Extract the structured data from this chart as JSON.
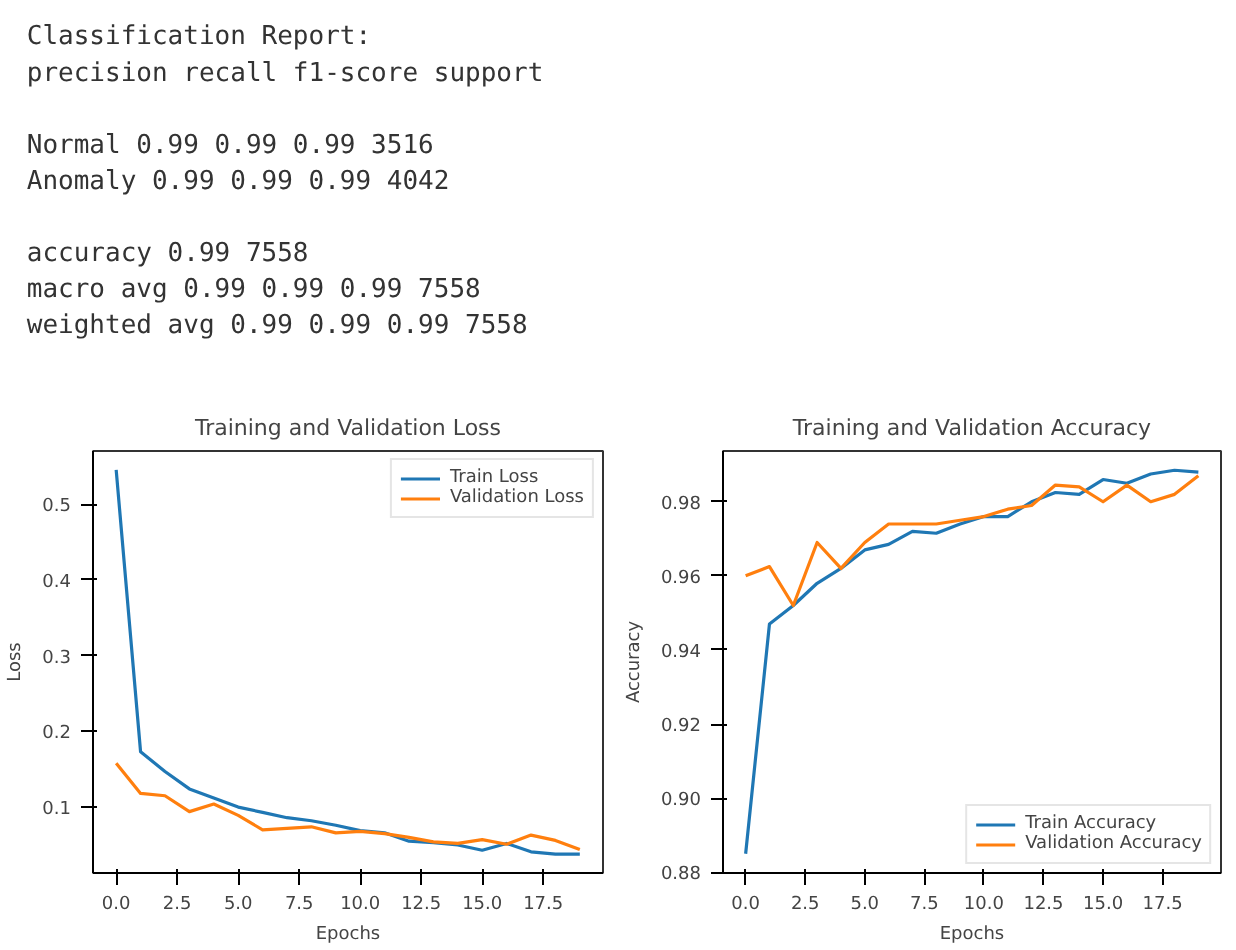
{
  "chart_data": [
    {
      "type": "other",
      "title": "Classification Report:",
      "annotations": [
        "              precision    recall  f1-score   support",
        "      Normal       0.99      0.99      0.99      3516\n     Anomaly       0.99      0.99      0.99      4042",
        "    accuracy                           0.99      7558\n   macro avg       0.99      0.99      0.99      7558\nweighted avg       0.99      0.99      0.99      7558"
      ]
    },
    {
      "type": "line",
      "title": "Training and Validation Loss",
      "xlabel": "Epochs",
      "ylabel": "Loss",
      "x": [
        0,
        1,
        2,
        3,
        4,
        5,
        6,
        7,
        8,
        9,
        10,
        11,
        12,
        13,
        14,
        15,
        16,
        17,
        18,
        19
      ],
      "series": [
        {
          "name": "Train Loss",
          "color": "#1f77b4",
          "values": [
            0.545,
            0.173,
            0.147,
            0.124,
            0.112,
            0.1,
            0.093,
            0.086,
            0.082,
            0.076,
            0.069,
            0.066,
            0.055,
            0.053,
            0.05,
            0.043,
            0.052,
            0.041,
            0.038,
            0.038
          ]
        },
        {
          "name": "Validation Loss",
          "color": "#ff7f0e",
          "values": [
            0.158,
            0.118,
            0.115,
            0.094,
            0.104,
            0.089,
            0.07,
            0.072,
            0.074,
            0.066,
            0.068,
            0.065,
            0.06,
            0.054,
            0.052,
            0.057,
            0.051,
            0.063,
            0.056,
            0.044
          ]
        }
      ],
      "xlim": [
        -0.95,
        19.95
      ],
      "ylim": [
        0.013,
        0.57
      ],
      "xticks": [
        {
          "value": 0,
          "label": "0.0"
        },
        {
          "value": 2.5,
          "label": "2.5"
        },
        {
          "value": 5,
          "label": "5.0"
        },
        {
          "value": 7.5,
          "label": "7.5"
        },
        {
          "value": 10,
          "label": "10.0"
        },
        {
          "value": 12.5,
          "label": "12.5"
        },
        {
          "value": 15,
          "label": "15.0"
        },
        {
          "value": 17.5,
          "label": "17.5"
        }
      ],
      "yticks": [
        0.1,
        0.2,
        0.3,
        0.4,
        0.5
      ],
      "legend": "top right",
      "grid": false,
      "line_style": "solid"
    },
    {
      "type": "line",
      "title": "Training and Validation Accuracy",
      "xlabel": "Epochs",
      "ylabel": "Accuracy",
      "x": [
        0,
        1,
        2,
        3,
        4,
        5,
        6,
        7,
        8,
        9,
        10,
        11,
        12,
        13,
        14,
        15,
        16,
        17,
        18,
        19
      ],
      "series": [
        {
          "name": "Train Accuracy",
          "color": "#1f77b4",
          "values": [
            0.885,
            0.947,
            0.952,
            0.958,
            0.962,
            0.967,
            0.9685,
            0.972,
            0.9715,
            0.974,
            0.976,
            0.976,
            0.98,
            0.9825,
            0.982,
            0.986,
            0.985,
            0.9875,
            0.9885,
            0.988
          ]
        },
        {
          "name": "Validation Accuracy",
          "color": "#ff7f0e",
          "values": [
            0.96,
            0.9625,
            0.952,
            0.969,
            0.962,
            0.969,
            0.974,
            0.974,
            0.974,
            0.975,
            0.976,
            0.978,
            0.979,
            0.9845,
            0.984,
            0.98,
            0.9845,
            0.98,
            0.982,
            0.987
          ]
        }
      ],
      "xlim": [
        -0.95,
        19.95
      ],
      "ylim": [
        0.8798,
        0.9937
      ],
      "xticks": [
        {
          "value": 0,
          "label": "0.0"
        },
        {
          "value": 2.5,
          "label": "2.5"
        },
        {
          "value": 5,
          "label": "5.0"
        },
        {
          "value": 7.5,
          "label": "7.5"
        },
        {
          "value": 10,
          "label": "10.0"
        },
        {
          "value": 12.5,
          "label": "12.5"
        },
        {
          "value": 15,
          "label": "15.0"
        },
        {
          "value": 17.5,
          "label": "17.5"
        }
      ],
      "yticks": [
        0.88,
        {
          "value": 0.9,
          "label": "0.90"
        },
        0.92,
        0.94,
        0.96,
        0.98
      ],
      "legend": "bottom right",
      "grid": false,
      "line_style": "solid"
    }
  ]
}
